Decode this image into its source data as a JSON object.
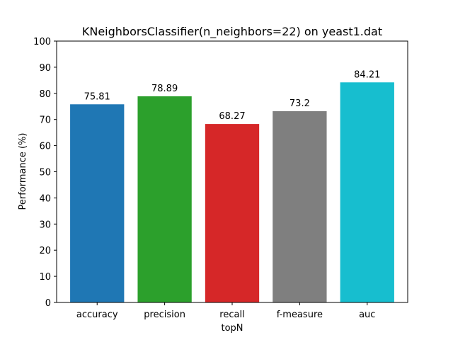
{
  "chart_data": {
    "type": "bar",
    "title": "KNeighborsClassifier(n_neighbors=22) on yeast1.dat",
    "xlabel": "topN",
    "ylabel": "Performance (%)",
    "ylim": [
      0,
      100
    ],
    "yticks": [
      0,
      10,
      20,
      30,
      40,
      50,
      60,
      70,
      80,
      90,
      100
    ],
    "categories": [
      "accuracy",
      "precision",
      "recall",
      "f-measure",
      "auc"
    ],
    "values": [
      75.81,
      78.89,
      68.27,
      73.2,
      84.21
    ],
    "data_labels": [
      "75.81",
      "78.89",
      "68.27",
      "73.2",
      "84.21"
    ],
    "colors": [
      "#1f77b4",
      "#2ca02c",
      "#d62728",
      "#7f7f7f",
      "#17becf"
    ],
    "grid": false,
    "legend": "none"
  }
}
